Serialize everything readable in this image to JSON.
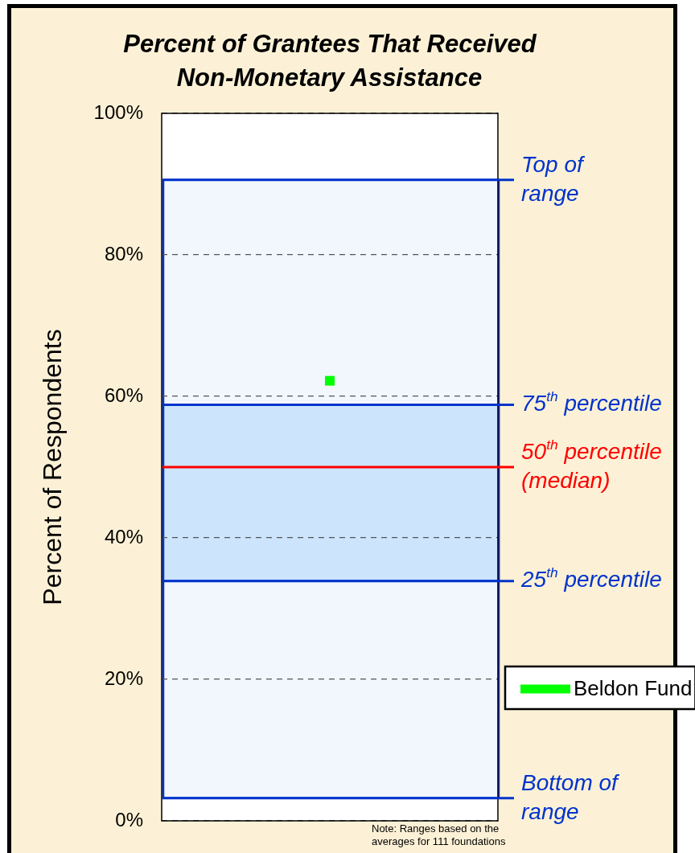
{
  "chart_data": {
    "type": "scatter",
    "title": "Percent of Grantees That Received Non-Monetary Assistance",
    "ylabel": "Percent of Respondents",
    "categories": [
      null
    ],
    "series": [
      {
        "name": "Beldon Fund",
        "color": "#00ff00",
        "values": [
          62.2
        ]
      }
    ],
    "marker": "square",
    "ylim": [
      0,
      100
    ],
    "yticks": [
      {
        "value": 0,
        "label": "0%"
      },
      {
        "value": 20,
        "label": "20%"
      },
      {
        "value": 40,
        "label": "40%"
      },
      {
        "value": 60,
        "label": "60%"
      },
      {
        "value": 80,
        "label": "80%"
      },
      {
        "value": 100,
        "label": "100%"
      }
    ],
    "grid": "y",
    "legend": "right",
    "bands": [
      {
        "axis": "y",
        "from": 3.2,
        "to": 90.6,
        "color": "#f2f7fe"
      },
      {
        "axis": "y",
        "from": 33.9,
        "to": 58.8,
        "color": "#cce4fc"
      }
    ],
    "ref_lines": [
      {
        "axis": "y",
        "value": 90.6,
        "label": "Top of range",
        "color": "#0033cc"
      },
      {
        "axis": "y",
        "value": 58.8,
        "label": "75$^{th}$ percentile",
        "color": "#0033cc"
      },
      {
        "axis": "y",
        "value": 50,
        "label": "50$^{th}$ percentile (median)",
        "color": "#ff0000"
      },
      {
        "axis": "y",
        "value": 33.9,
        "label": "25$^{th}$ percentile",
        "color": "#0033cc"
      },
      {
        "axis": "y",
        "value": 3.2,
        "label": "Bottom of range",
        "color": "#0033cc"
      }
    ],
    "annotations": [
      "Note: Ranges based on the averages for 111 foundations"
    ]
  }
}
